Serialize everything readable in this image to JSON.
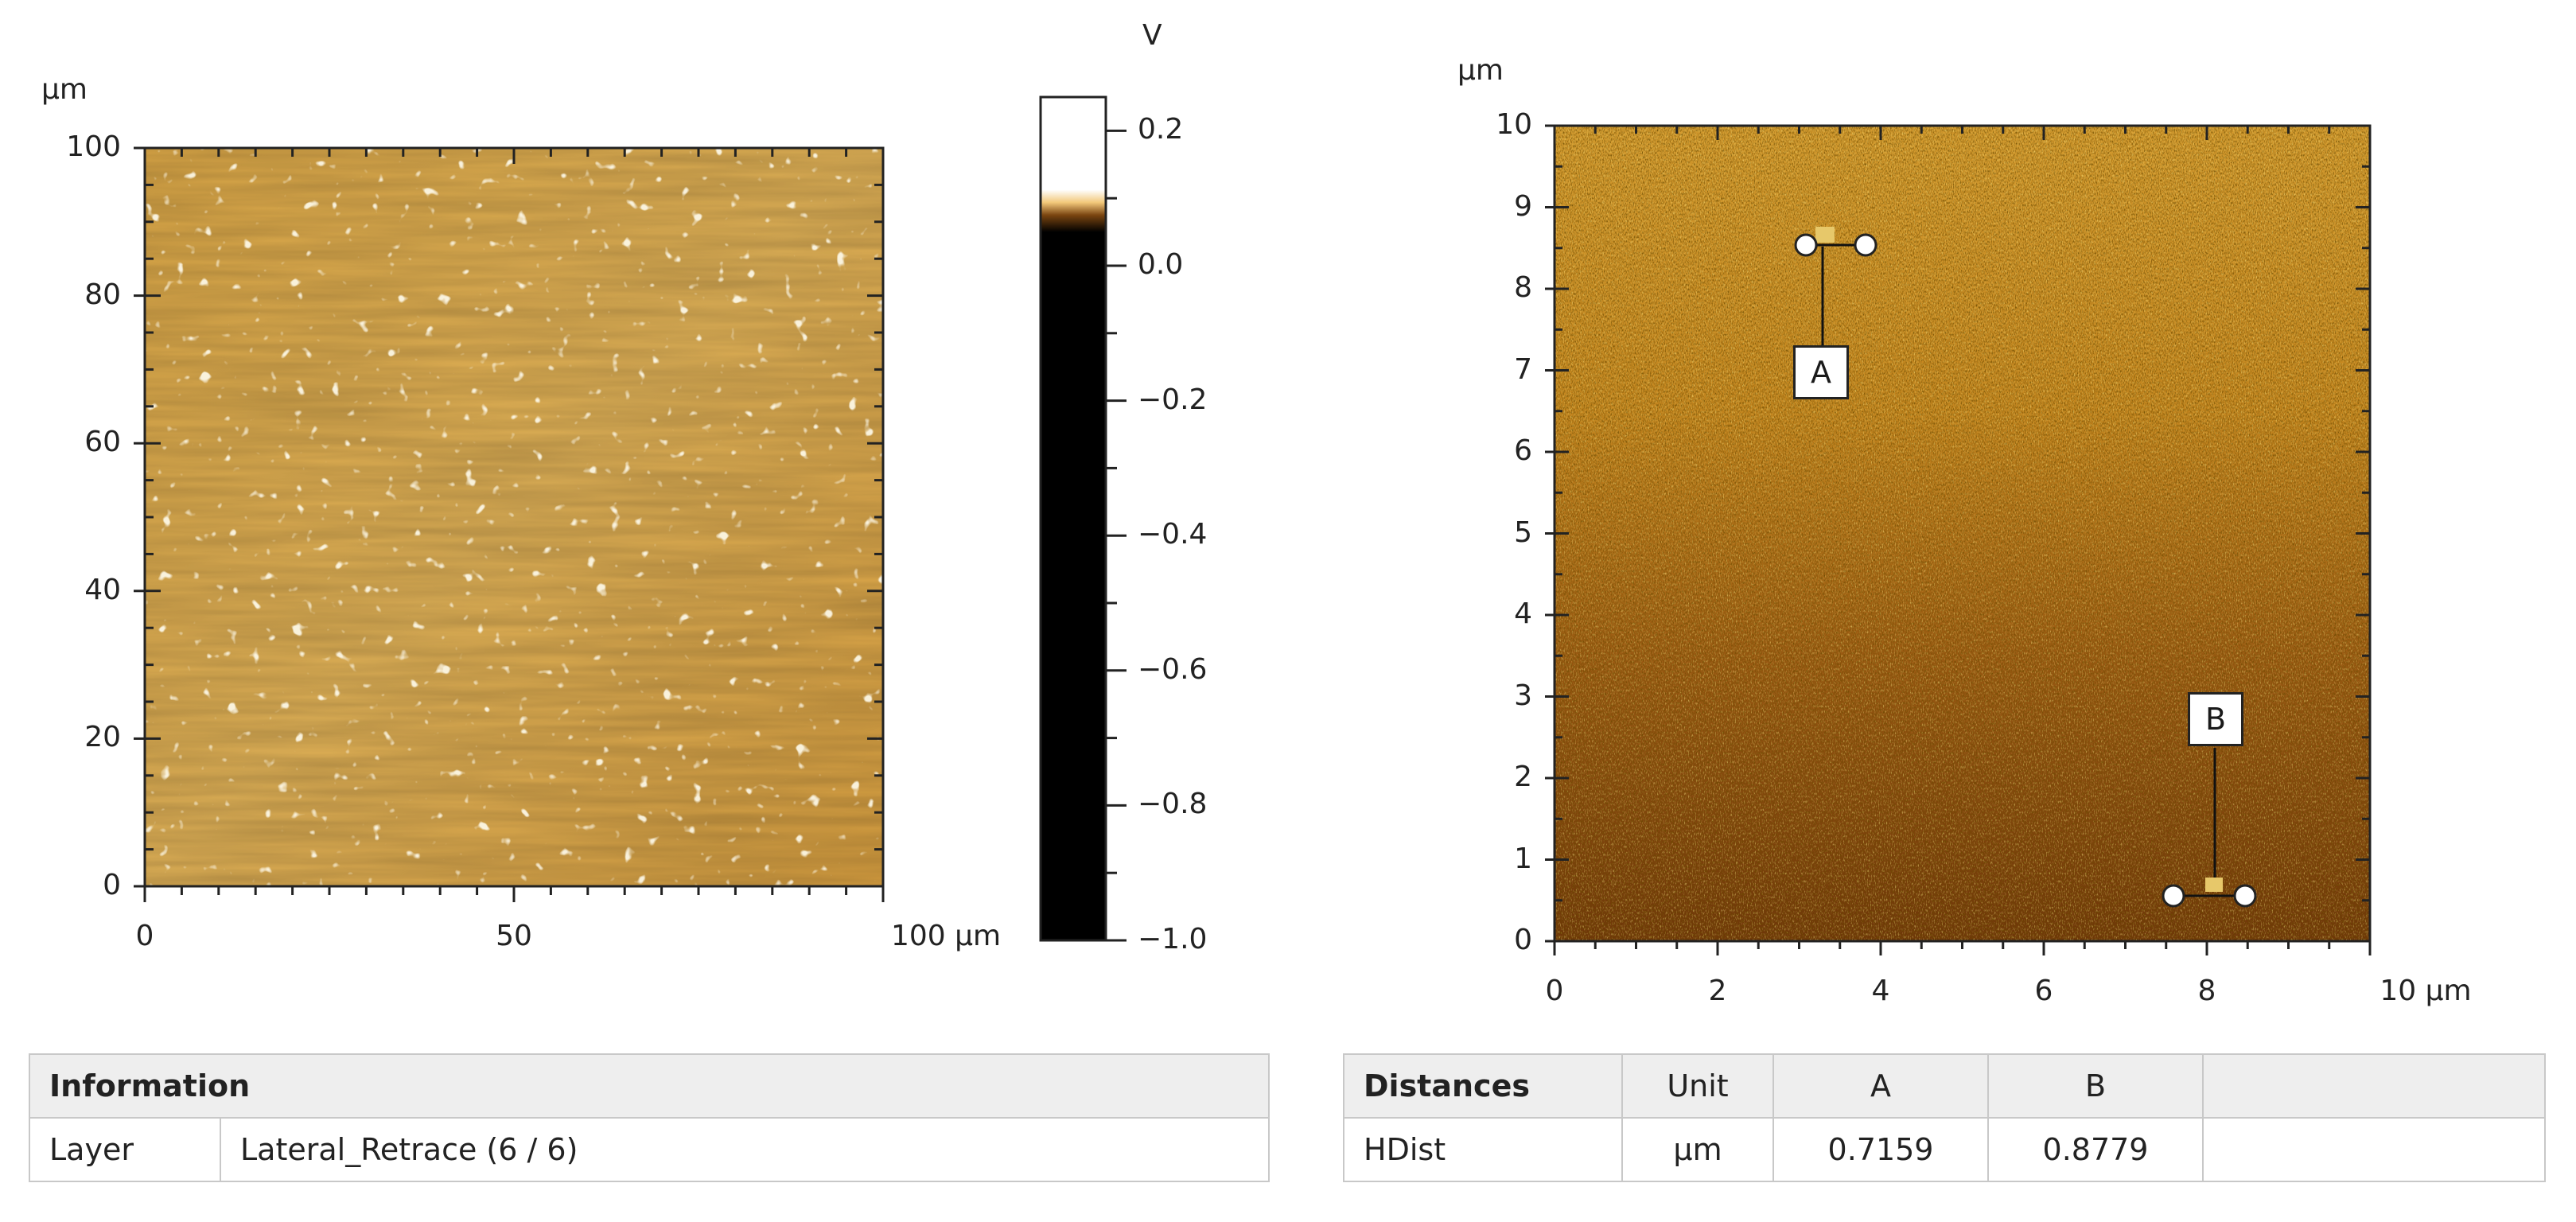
{
  "left_plot": {
    "unit_label": "µm",
    "y_ticks": [
      "100",
      "80",
      "60",
      "40",
      "20",
      "0"
    ],
    "x_ticks": [
      "0",
      "50",
      "100 µm"
    ]
  },
  "colorbar": {
    "unit_label": "V",
    "ticks": [
      "0.2",
      "0.0",
      "−0.2",
      "−0.4",
      "−0.6",
      "−0.8",
      "−1.0"
    ]
  },
  "right_plot": {
    "unit_label": "µm",
    "y_ticks": [
      "10",
      "9",
      "8",
      "7",
      "6",
      "5",
      "4",
      "3",
      "2",
      "1",
      "0"
    ],
    "x_ticks": [
      "0",
      "2",
      "4",
      "6",
      "8",
      "10 µm"
    ],
    "markers": [
      {
        "label": "A"
      },
      {
        "label": "B"
      }
    ]
  },
  "information_table": {
    "title": "Information",
    "row_label": "Layer",
    "row_value": "Lateral_Retrace (6 / 6)"
  },
  "distances_table": {
    "title": "Distances",
    "col_unit": "Unit",
    "col_a": "A",
    "col_b": "B",
    "row_label": "HDist",
    "row_unit": "µm",
    "row_a": "0.7159",
    "row_b": "0.8779"
  },
  "colors": {
    "afm_light": "#d9a94f",
    "afm_dark": "#6a3a0a",
    "axis": "#222222"
  }
}
